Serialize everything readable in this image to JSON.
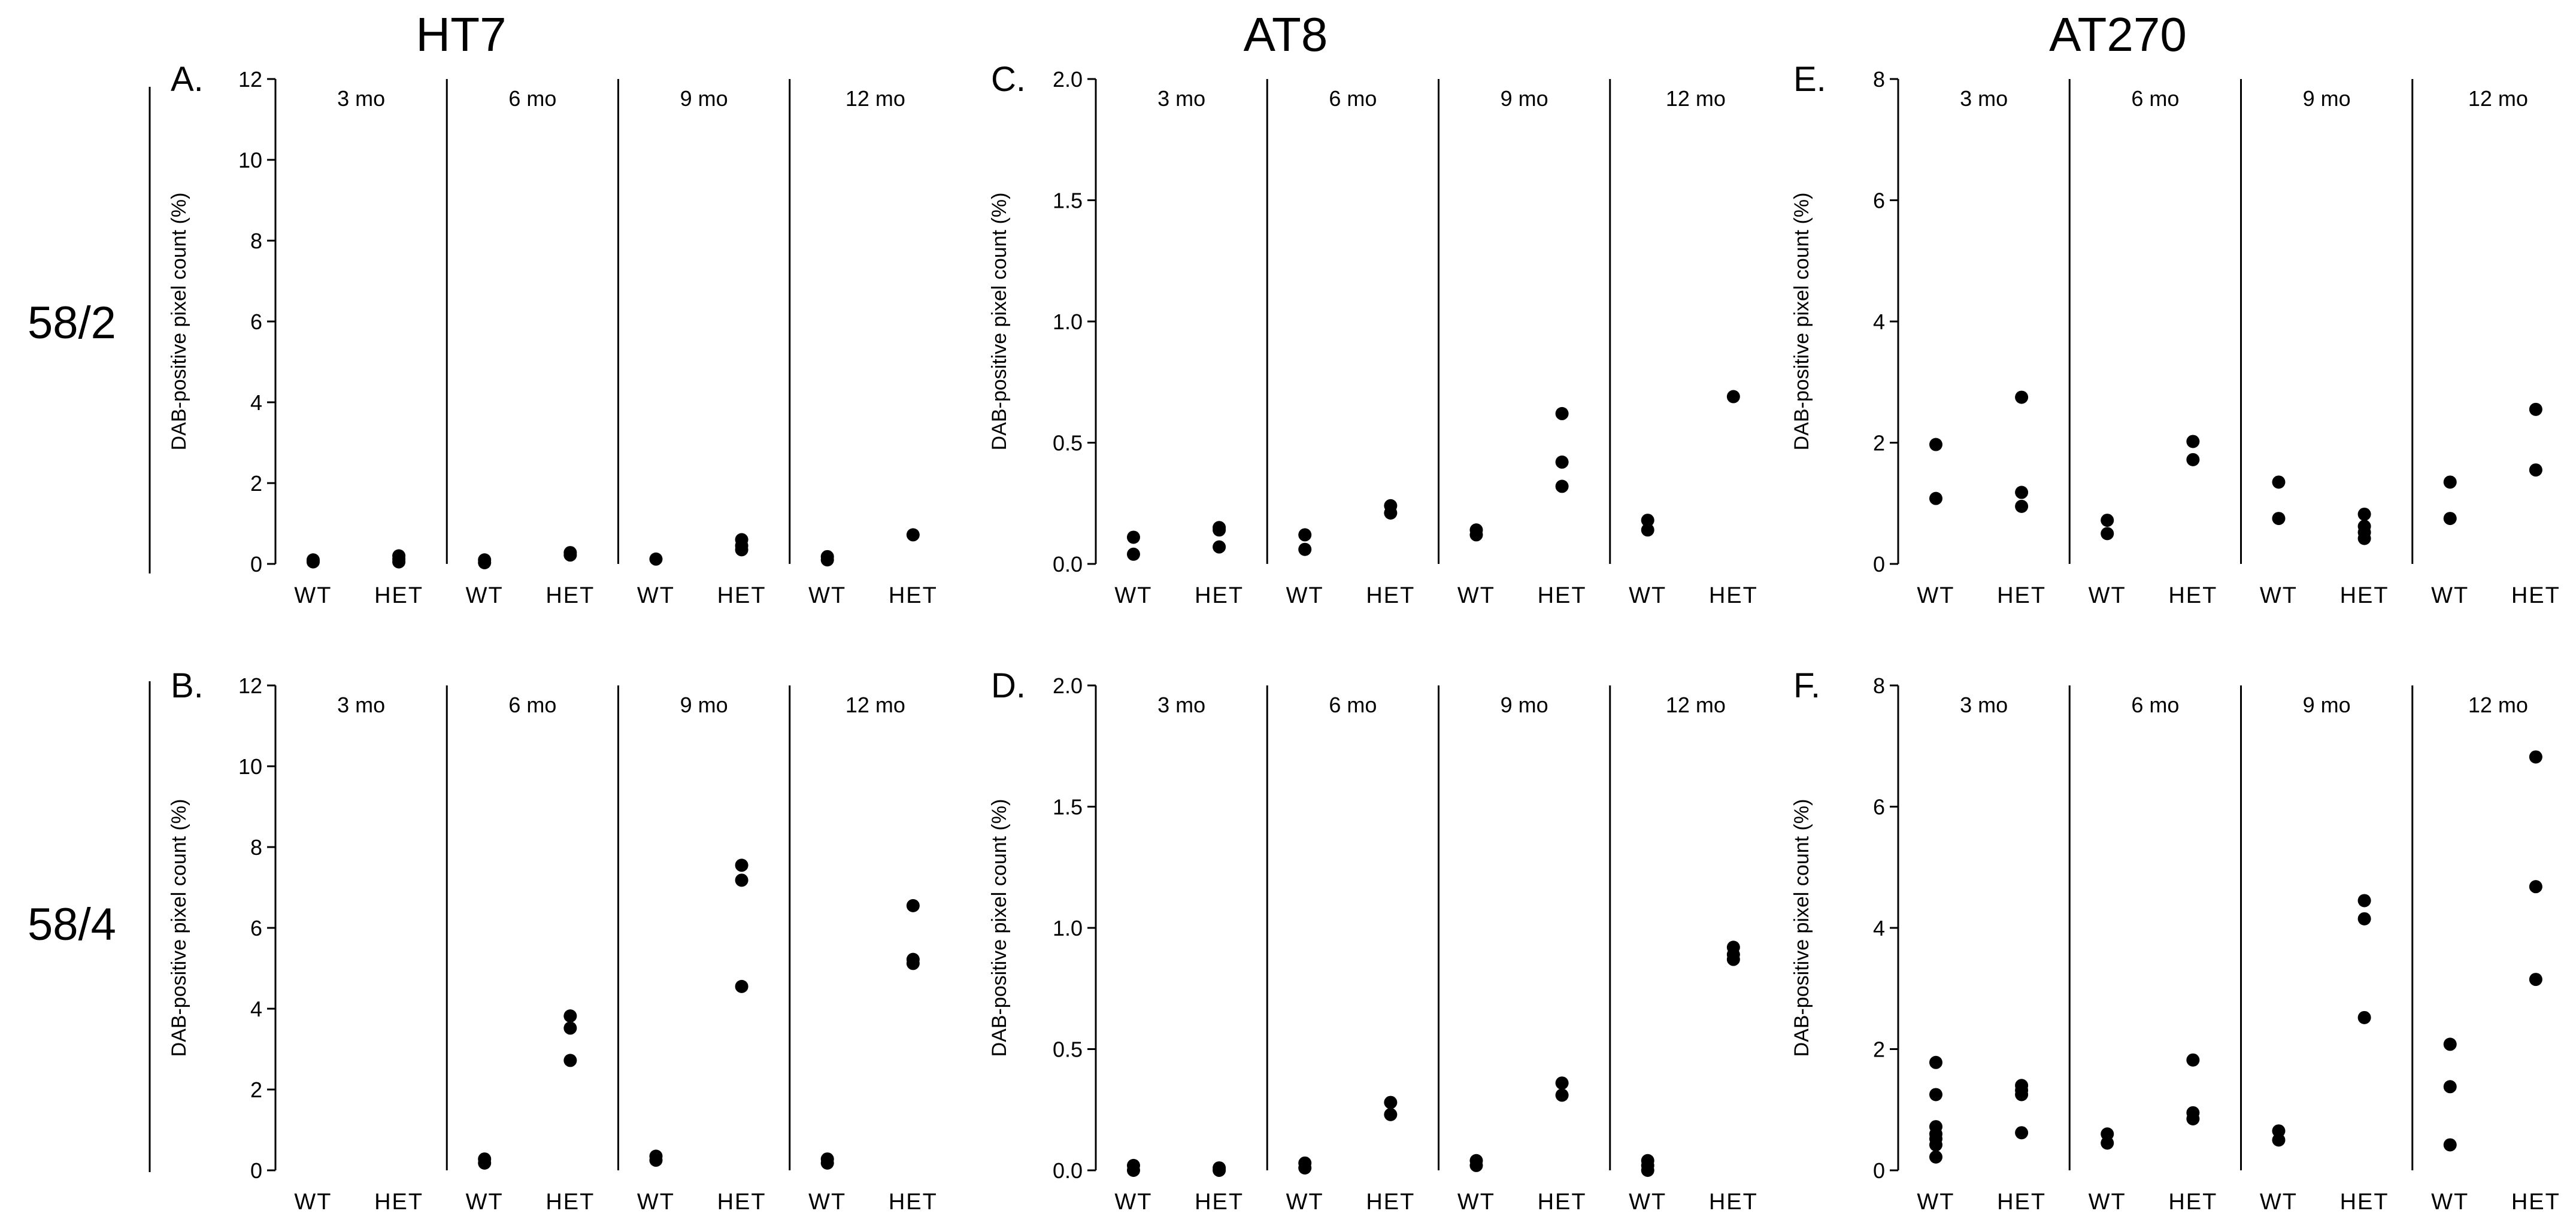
{
  "column_titles": [
    "HT7",
    "AT8",
    "AT270"
  ],
  "row_labels": [
    "58/2",
    "58/4"
  ],
  "chart_data": [
    {
      "panel": "A.",
      "type": "scatter",
      "title": "HT7",
      "row": "58/2",
      "ylabel": "DAB-positive pixel count (%)",
      "ylim": [
        0,
        12
      ],
      "yticks": [
        0,
        2,
        4,
        6,
        8,
        10,
        12
      ],
      "ytick_labels": [
        "0",
        "2",
        "4",
        "6",
        "8",
        "10",
        "12"
      ],
      "groups": [
        "3 mo",
        "6 mo",
        "9 mo",
        "12 mo"
      ],
      "categories": [
        "WT",
        "HET"
      ],
      "points": [
        [
          0,
          0,
          0.05
        ],
        [
          0,
          0,
          0.1
        ],
        [
          0,
          1,
          0.05
        ],
        [
          0,
          1,
          0.12
        ],
        [
          0,
          1,
          0.2
        ],
        [
          1,
          0,
          0.03
        ],
        [
          1,
          0,
          0.1
        ],
        [
          1,
          1,
          0.22
        ],
        [
          1,
          1,
          0.28
        ],
        [
          2,
          0,
          0.12
        ],
        [
          2,
          1,
          0.35
        ],
        [
          2,
          1,
          0.45
        ],
        [
          2,
          1,
          0.6
        ],
        [
          3,
          0,
          0.1
        ],
        [
          3,
          0,
          0.18
        ],
        [
          3,
          1,
          0.72
        ]
      ]
    },
    {
      "panel": "C.",
      "type": "scatter",
      "title": "AT8",
      "row": "58/2",
      "ylabel": "DAB-positive pixel count (%)",
      "ylim": [
        0,
        2
      ],
      "yticks": [
        0,
        0.5,
        1,
        1.5,
        2
      ],
      "ytick_labels": [
        "0.0",
        "0.5",
        "1.0",
        "1.5",
        "2.0"
      ],
      "groups": [
        "3 mo",
        "6 mo",
        "9 mo",
        "12 mo"
      ],
      "categories": [
        "WT",
        "HET"
      ],
      "points": [
        [
          0,
          0,
          0.04
        ],
        [
          0,
          0,
          0.11
        ],
        [
          0,
          1,
          0.07
        ],
        [
          0,
          1,
          0.14
        ],
        [
          0,
          1,
          0.15
        ],
        [
          1,
          0,
          0.06
        ],
        [
          1,
          0,
          0.12
        ],
        [
          1,
          1,
          0.21
        ],
        [
          1,
          1,
          0.24
        ],
        [
          2,
          0,
          0.12
        ],
        [
          2,
          0,
          0.14
        ],
        [
          2,
          1,
          0.32
        ],
        [
          2,
          1,
          0.42
        ],
        [
          2,
          1,
          0.62
        ],
        [
          3,
          0,
          0.14
        ],
        [
          3,
          0,
          0.18
        ],
        [
          3,
          1,
          0.69
        ]
      ]
    },
    {
      "panel": "E.",
      "type": "scatter",
      "title": "AT270",
      "row": "58/2",
      "ylabel": "DAB-positive pixel count (%)",
      "ylim": [
        0,
        8
      ],
      "yticks": [
        0,
        2,
        4,
        6,
        8
      ],
      "ytick_labels": [
        "0",
        "2",
        "4",
        "6",
        "8"
      ],
      "groups": [
        "3 mo",
        "6 mo",
        "9 mo",
        "12 mo"
      ],
      "categories": [
        "WT",
        "HET"
      ],
      "points": [
        [
          0,
          0,
          1.08
        ],
        [
          0,
          0,
          1.97
        ],
        [
          0,
          1,
          0.95
        ],
        [
          0,
          1,
          1.18
        ],
        [
          0,
          1,
          2.75
        ],
        [
          1,
          0,
          0.5
        ],
        [
          1,
          0,
          0.72
        ],
        [
          1,
          1,
          1.72
        ],
        [
          1,
          1,
          2.02
        ],
        [
          2,
          0,
          0.75
        ],
        [
          2,
          0,
          1.35
        ],
        [
          2,
          1,
          0.42
        ],
        [
          2,
          1,
          0.52
        ],
        [
          2,
          1,
          0.62
        ],
        [
          2,
          1,
          0.82
        ],
        [
          3,
          0,
          0.75
        ],
        [
          3,
          0,
          1.35
        ],
        [
          3,
          1,
          1.55
        ],
        [
          3,
          1,
          2.55
        ]
      ]
    },
    {
      "panel": "B.",
      "type": "scatter",
      "title": "HT7",
      "row": "58/4",
      "ylabel": "DAB-positive pixel count (%)",
      "ylim": [
        0,
        12
      ],
      "yticks": [
        0,
        2,
        4,
        6,
        8,
        10,
        12
      ],
      "ytick_labels": [
        "0",
        "2",
        "4",
        "6",
        "8",
        "10",
        "12"
      ],
      "groups": [
        "3 mo",
        "6 mo",
        "9 mo",
        "12 mo"
      ],
      "categories": [
        "WT",
        "HET"
      ],
      "points": [
        [
          1,
          0,
          0.18
        ],
        [
          1,
          0,
          0.28
        ],
        [
          1,
          1,
          2.72
        ],
        [
          1,
          1,
          3.52
        ],
        [
          1,
          1,
          3.82
        ],
        [
          2,
          0,
          0.25
        ],
        [
          2,
          0,
          0.35
        ],
        [
          2,
          1,
          4.55
        ],
        [
          2,
          1,
          7.18
        ],
        [
          2,
          1,
          7.55
        ],
        [
          3,
          0,
          0.18
        ],
        [
          3,
          0,
          0.28
        ],
        [
          3,
          1,
          5.12
        ],
        [
          3,
          1,
          5.22
        ],
        [
          3,
          1,
          6.55
        ]
      ]
    },
    {
      "panel": "D.",
      "type": "scatter",
      "title": "AT8",
      "row": "58/4",
      "ylabel": "DAB-positive pixel count (%)",
      "ylim": [
        0,
        2
      ],
      "yticks": [
        0,
        0.5,
        1,
        1.5,
        2
      ],
      "ytick_labels": [
        "0.0",
        "0.5",
        "1.0",
        "1.5",
        "2.0"
      ],
      "groups": [
        "3 mo",
        "6 mo",
        "9 mo",
        "12 mo"
      ],
      "categories": [
        "WT",
        "HET"
      ],
      "points": [
        [
          0,
          0,
          0.0
        ],
        [
          0,
          0,
          0.02
        ],
        [
          0,
          1,
          0.0
        ],
        [
          0,
          1,
          0.01
        ],
        [
          1,
          0,
          0.01
        ],
        [
          1,
          0,
          0.03
        ],
        [
          1,
          1,
          0.23
        ],
        [
          1,
          1,
          0.28
        ],
        [
          2,
          0,
          0.02
        ],
        [
          2,
          0,
          0.04
        ],
        [
          2,
          1,
          0.31
        ],
        [
          2,
          1,
          0.36
        ],
        [
          3,
          0,
          0.0
        ],
        [
          3,
          0,
          0.02
        ],
        [
          3,
          0,
          0.04
        ],
        [
          3,
          1,
          0.87
        ],
        [
          3,
          1,
          0.89
        ],
        [
          3,
          1,
          0.92
        ]
      ]
    },
    {
      "panel": "F.",
      "type": "scatter",
      "title": "AT270",
      "row": "58/4",
      "ylabel": "DAB-positive pixel count (%)",
      "ylim": [
        0,
        8
      ],
      "yticks": [
        0,
        2,
        4,
        6,
        8
      ],
      "ytick_labels": [
        "0",
        "2",
        "4",
        "6",
        "8"
      ],
      "groups": [
        "3 mo",
        "6 mo",
        "9 mo",
        "12 mo"
      ],
      "categories": [
        "WT",
        "HET"
      ],
      "points": [
        [
          0,
          0,
          0.22
        ],
        [
          0,
          0,
          0.42
        ],
        [
          0,
          0,
          0.52
        ],
        [
          0,
          0,
          0.6
        ],
        [
          0,
          0,
          0.72
        ],
        [
          0,
          0,
          1.25
        ],
        [
          0,
          0,
          1.78
        ],
        [
          0,
          1,
          0.62
        ],
        [
          0,
          1,
          1.25
        ],
        [
          0,
          1,
          1.32
        ],
        [
          0,
          1,
          1.4
        ],
        [
          1,
          0,
          0.45
        ],
        [
          1,
          0,
          0.6
        ],
        [
          1,
          1,
          0.85
        ],
        [
          1,
          1,
          0.95
        ],
        [
          1,
          1,
          1.82
        ],
        [
          2,
          0,
          0.5
        ],
        [
          2,
          0,
          0.65
        ],
        [
          2,
          1,
          2.52
        ],
        [
          2,
          1,
          4.15
        ],
        [
          2,
          1,
          4.45
        ],
        [
          3,
          0,
          0.42
        ],
        [
          3,
          0,
          1.38
        ],
        [
          3,
          0,
          2.08
        ],
        [
          3,
          1,
          3.15
        ],
        [
          3,
          1,
          4.68
        ],
        [
          3,
          1,
          6.82
        ]
      ]
    }
  ]
}
